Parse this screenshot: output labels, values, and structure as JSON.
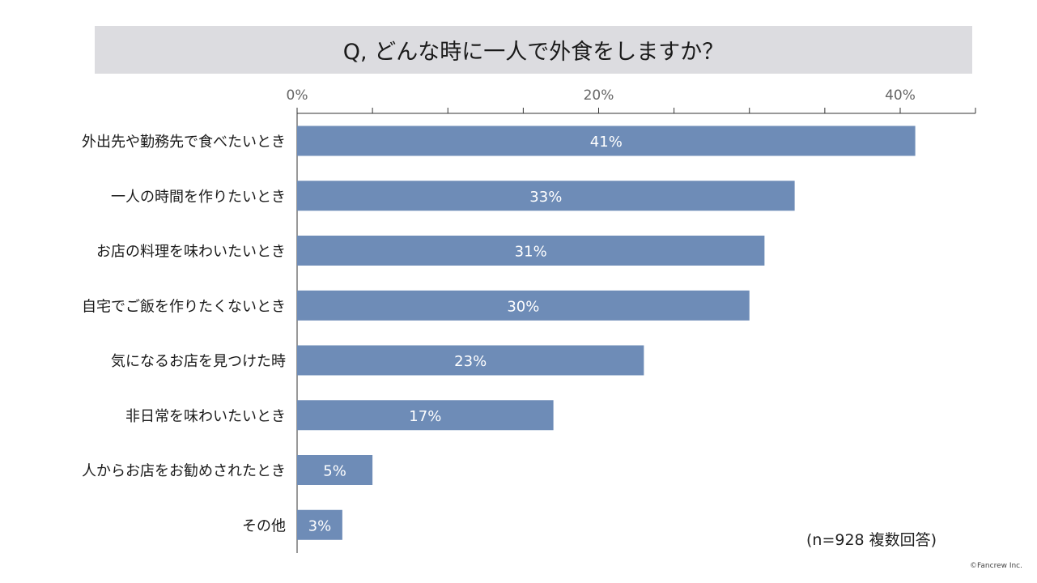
{
  "title": "Q, どんな時に一人で外食をしますか？",
  "note": "(n=928 複数回答)",
  "copyright": "©Fancrew Inc.",
  "colors": {
    "bar": "#6e8cb7",
    "axis": "#333333",
    "banner": "#dcdce0"
  },
  "chart_data": {
    "type": "bar",
    "orientation": "horizontal",
    "categories": [
      "外出先や勤務先で食べたいとき",
      "一人の時間を作りたいとき",
      "お店の料理を味わいたいとき",
      "自宅でご飯を作りたくないとき",
      "気になるお店を見つけた時",
      "非日常を味わいたいとき",
      "人からお店をお勧めされたとき",
      "その他"
    ],
    "values": [
      41,
      33,
      31,
      30,
      23,
      17,
      5,
      3
    ],
    "data_labels": [
      "41%",
      "33%",
      "31%",
      "30%",
      "23%",
      "17%",
      "5%",
      "3%"
    ],
    "x_ticks": [
      {
        "value": 0,
        "label": "0%"
      },
      {
        "value": 20,
        "label": "20%"
      },
      {
        "value": 40,
        "label": "40%"
      }
    ],
    "x_minor_ticks": [
      5,
      10,
      15,
      25,
      30,
      35,
      45
    ],
    "xlim": [
      0,
      45
    ],
    "axis_position": "top",
    "grid": false,
    "legend": "none"
  }
}
